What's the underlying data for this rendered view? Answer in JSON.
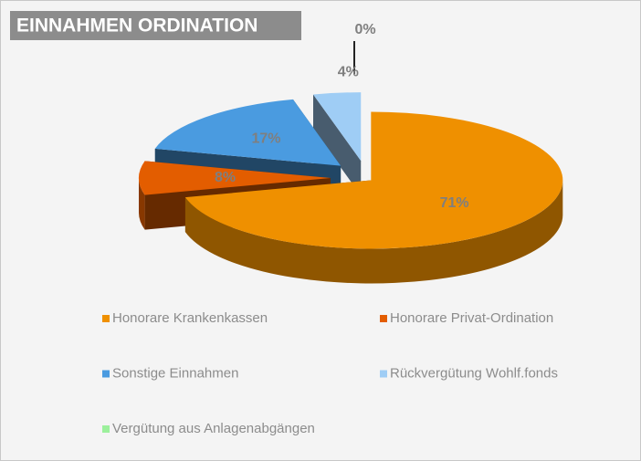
{
  "chart_data": {
    "type": "pie3d",
    "title": "EINNAHMEN ORDINATION",
    "categories": [
      "Honorare Krankenkassen",
      "Honorare Privat-Ordination",
      "Sonstige Einnahmen",
      "Rückvergütung Wohlf.fonds",
      "Vergütung aus Anlagenabgängen"
    ],
    "values": [
      71,
      8,
      17,
      4,
      0
    ],
    "value_labels": [
      "71%",
      "8%",
      "17%",
      "4%",
      "0%"
    ],
    "colors": [
      "#ef9000",
      "#e35d00",
      "#4a9be0",
      "#9fcdf5",
      "#9cf09c"
    ],
    "legend": "bottom"
  }
}
